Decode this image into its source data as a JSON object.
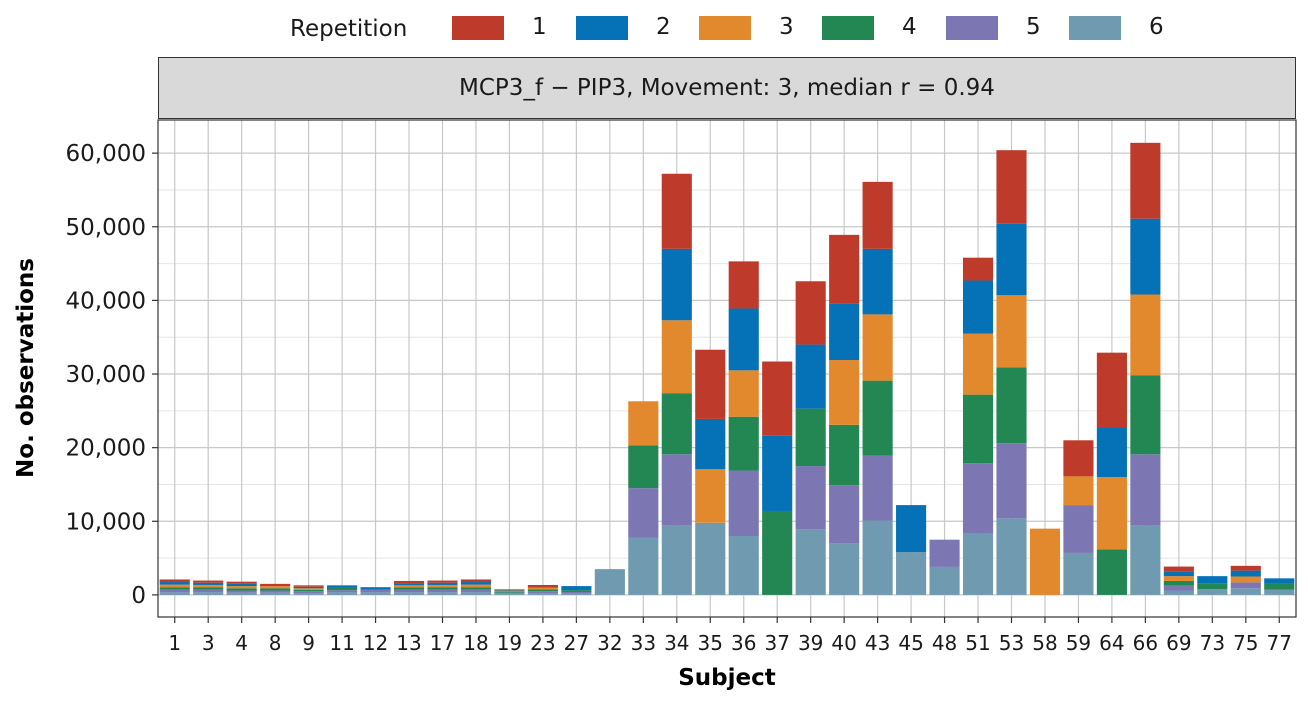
{
  "legend": {
    "title": "Repetition",
    "items": [
      {
        "label": "1",
        "color": "#BE3B2B"
      },
      {
        "label": "2",
        "color": "#0572B8"
      },
      {
        "label": "3",
        "color": "#E3892D"
      },
      {
        "label": "4",
        "color": "#228752"
      },
      {
        "label": "5",
        "color": "#7C77B3"
      },
      {
        "label": "6",
        "color": "#6F9AAF"
      }
    ]
  },
  "panel": {
    "title": "MCP3_f − PIP3, Movement: 3, median r = 0.94"
  },
  "chart_data": {
    "type": "bar",
    "stacked": true,
    "xlabel": "Subject",
    "ylabel": "No. observations",
    "ylim": [
      -3000,
      64500
    ],
    "yticks": [
      0,
      10000,
      20000,
      30000,
      40000,
      50000,
      60000
    ],
    "ytick_labels": [
      "0",
      "10,000",
      "20,000",
      "30,000",
      "40,000",
      "50,000",
      "60,000"
    ],
    "grid": true,
    "legend_position": "top",
    "categories": [
      "1",
      "3",
      "4",
      "8",
      "9",
      "11",
      "12",
      "13",
      "17",
      "18",
      "19",
      "23",
      "27",
      "32",
      "33",
      "34",
      "35",
      "36",
      "37",
      "39",
      "40",
      "43",
      "45",
      "48",
      "51",
      "53",
      "58",
      "59",
      "64",
      "66",
      "69",
      "73",
      "75",
      "77"
    ],
    "series": [
      {
        "name": "6",
        "values": [
          350,
          350,
          300,
          300,
          250,
          350,
          350,
          350,
          350,
          350,
          150,
          250,
          200,
          3500,
          7800,
          9400,
          9800,
          8000,
          0,
          8900,
          7000,
          10100,
          5800,
          3800,
          8300,
          10400,
          0,
          5700,
          0,
          9400,
          600,
          800,
          900,
          700
        ]
      },
      {
        "name": "5",
        "values": [
          350,
          350,
          300,
          300,
          250,
          300,
          350,
          350,
          350,
          350,
          150,
          250,
          200,
          0,
          6700,
          9700,
          0,
          8900,
          0,
          8600,
          7900,
          8800,
          0,
          3700,
          9600,
          10200,
          0,
          6500,
          0,
          9700,
          650,
          0,
          800,
          0
        ]
      },
      {
        "name": "4",
        "values": [
          350,
          350,
          300,
          300,
          200,
          300,
          0,
          300,
          350,
          350,
          150,
          250,
          250,
          0,
          5800,
          8300,
          0,
          7300,
          11400,
          7800,
          8200,
          10200,
          0,
          0,
          9300,
          10300,
          0,
          0,
          6200,
          10700,
          650,
          800,
          0,
          800
        ]
      },
      {
        "name": "3",
        "values": [
          350,
          300,
          300,
          300,
          200,
          0,
          0,
          300,
          300,
          350,
          150,
          250,
          0,
          0,
          6000,
          9900,
          7300,
          6300,
          0,
          0,
          8800,
          9000,
          0,
          0,
          8300,
          9800,
          9000,
          3900,
          9800,
          11000,
          650,
          0,
          800,
          0
        ]
      },
      {
        "name": "2",
        "values": [
          350,
          300,
          300,
          0,
          200,
          350,
          350,
          300,
          300,
          350,
          150,
          0,
          550,
          0,
          0,
          9700,
          6800,
          8400,
          10200,
          8700,
          7700,
          8900,
          6400,
          0,
          7200,
          9700,
          0,
          0,
          6800,
          10300,
          650,
          950,
          800,
          750
        ]
      },
      {
        "name": "1",
        "values": [
          350,
          300,
          300,
          300,
          200,
          0,
          0,
          300,
          300,
          350,
          0,
          350,
          0,
          0,
          0,
          10200,
          9400,
          6400,
          10100,
          8600,
          9300,
          9100,
          0,
          0,
          3100,
          10000,
          0,
          4900,
          10100,
          10300,
          650,
          0,
          650,
          0
        ]
      }
    ]
  }
}
